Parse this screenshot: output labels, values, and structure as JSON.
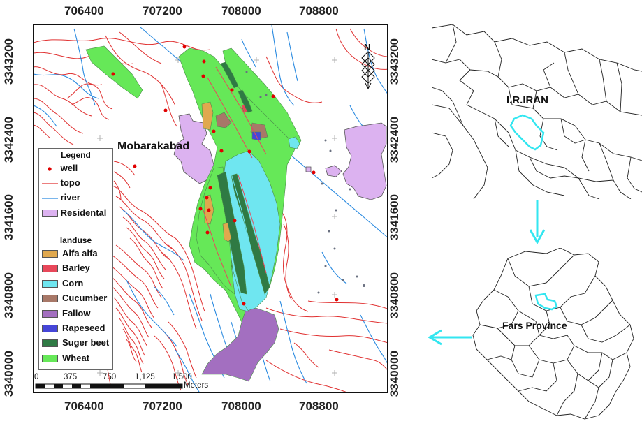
{
  "axes": {
    "x_ticks": [
      "706400",
      "707200",
      "708000",
      "708800"
    ],
    "y_ticks": [
      "3343200",
      "3342400",
      "3341600",
      "3340800",
      "3340000"
    ]
  },
  "main_map": {
    "town_label": "Mobarakabad",
    "north_arrow_letter": "N"
  },
  "legend": {
    "title": "Legend",
    "features": [
      {
        "label": "well",
        "symbol": "point",
        "color": "#e00000"
      },
      {
        "label": "topo",
        "symbol": "line",
        "color": "#e03030"
      },
      {
        "label": "river",
        "symbol": "line",
        "color": "#2a8ae0"
      },
      {
        "label": "Residental",
        "symbol": "fill",
        "color": "#dcb2f0"
      }
    ],
    "landuse_title": "landuse",
    "landuse": [
      {
        "label": "Alfa alfa",
        "color": "#e0a84e"
      },
      {
        "label": "Barley",
        "color": "#e8475a"
      },
      {
        "label": "Corn",
        "color": "#6fe6f0"
      },
      {
        "label": "Cucumber",
        "color": "#a87868"
      },
      {
        "label": "Fallow",
        "color": "#a36fc0"
      },
      {
        "label": "Rapeseed",
        "color": "#4646d8"
      },
      {
        "label": "Suger beet",
        "color": "#2f7a44"
      },
      {
        "label": "Wheat",
        "color": "#66e858"
      }
    ]
  },
  "scale_bar": {
    "labels": [
      "0",
      "375",
      "750",
      "1,125",
      "1,500"
    ],
    "unit": "Meters"
  },
  "insets": {
    "country_label": "I.R.IRAN",
    "province_label": "Fars Province",
    "highlight_color": "#33e6f0"
  }
}
